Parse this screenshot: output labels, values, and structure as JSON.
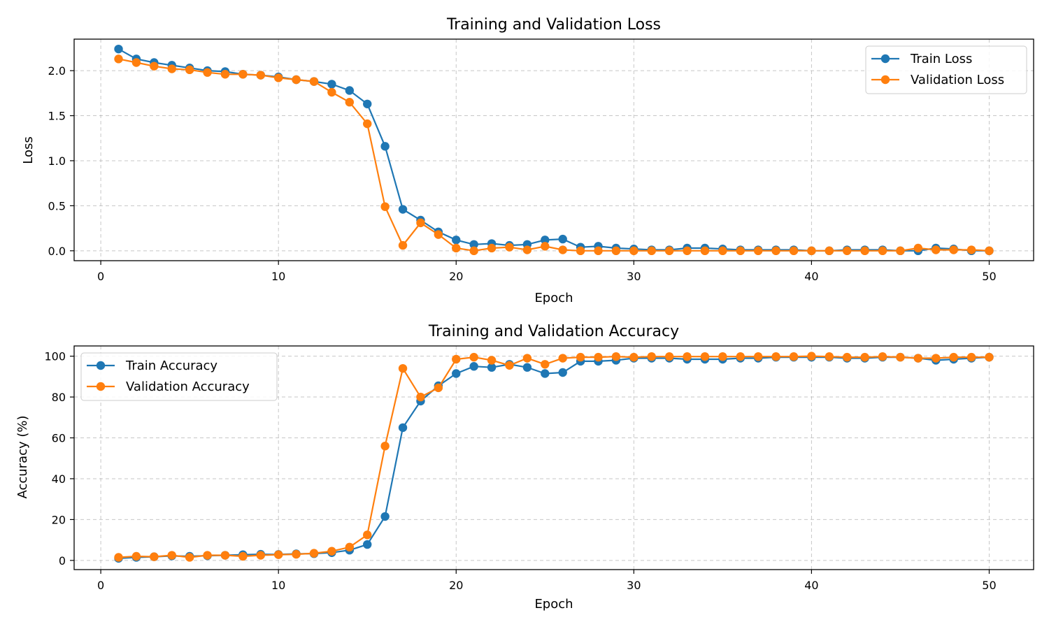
{
  "colors": {
    "train": "#1f77b4",
    "validation": "#ff7f0e",
    "grid": "#b0b0b0",
    "axes": "#000000"
  },
  "chart_data": [
    {
      "type": "line",
      "title": "Training and Validation Loss",
      "xlabel": "Epoch",
      "ylabel": "Loss",
      "xlim": [
        -1.5,
        52.5
      ],
      "ylim": [
        -0.11,
        2.35
      ],
      "xticks": [
        0,
        10,
        20,
        30,
        40,
        50
      ],
      "xtick_labels": [
        "0",
        "10",
        "20",
        "30",
        "40",
        "50"
      ],
      "yticks": [
        0.0,
        0.5,
        1.0,
        1.5,
        2.0
      ],
      "ytick_labels": [
        "0.0",
        "0.5",
        "1.0",
        "1.5",
        "2.0"
      ],
      "grid": true,
      "legend_position": "top-right",
      "x": [
        1,
        2,
        3,
        4,
        5,
        6,
        7,
        8,
        9,
        10,
        11,
        12,
        13,
        14,
        15,
        16,
        17,
        18,
        19,
        20,
        21,
        22,
        23,
        24,
        25,
        26,
        27,
        28,
        29,
        30,
        31,
        32,
        33,
        34,
        35,
        36,
        37,
        38,
        39,
        40,
        41,
        42,
        43,
        44,
        45,
        46,
        47,
        48,
        49,
        50
      ],
      "series": [
        {
          "name": "Train Loss",
          "color": "#1f77b4",
          "values": [
            2.24,
            2.13,
            2.09,
            2.06,
            2.03,
            2.0,
            1.99,
            1.96,
            1.95,
            1.93,
            1.9,
            1.88,
            1.85,
            1.78,
            1.63,
            1.16,
            0.46,
            0.34,
            0.21,
            0.12,
            0.07,
            0.08,
            0.06,
            0.07,
            0.12,
            0.13,
            0.04,
            0.05,
            0.03,
            0.02,
            0.01,
            0.01,
            0.03,
            0.03,
            0.02,
            0.01,
            0.01,
            0.01,
            0.01,
            0.0,
            0.0,
            0.01,
            0.01,
            0.01,
            0.0,
            0.0,
            0.03,
            0.02,
            0.0,
            0.0
          ]
        },
        {
          "name": "Validation Loss",
          "color": "#ff7f0e",
          "values": [
            2.13,
            2.09,
            2.05,
            2.02,
            2.01,
            1.98,
            1.96,
            1.96,
            1.95,
            1.92,
            1.9,
            1.88,
            1.76,
            1.65,
            1.41,
            0.49,
            0.06,
            0.31,
            0.18,
            0.03,
            0.0,
            0.03,
            0.04,
            0.01,
            0.05,
            0.01,
            0.0,
            0.0,
            0.0,
            0.0,
            0.0,
            0.0,
            0.0,
            0.0,
            0.0,
            0.0,
            0.0,
            0.0,
            0.0,
            0.0,
            0.0,
            0.0,
            0.0,
            0.0,
            0.0,
            0.03,
            0.01,
            0.01,
            0.01,
            0.0
          ]
        }
      ]
    },
    {
      "type": "line",
      "title": "Training and Validation Accuracy",
      "xlabel": "Epoch",
      "ylabel": "Accuracy (%)",
      "xlim": [
        -1.5,
        52.5
      ],
      "ylim": [
        -4.5,
        105
      ],
      "xticks": [
        0,
        10,
        20,
        30,
        40,
        50
      ],
      "xtick_labels": [
        "0",
        "10",
        "20",
        "30",
        "40",
        "50"
      ],
      "yticks": [
        0,
        20,
        40,
        60,
        80,
        100
      ],
      "ytick_labels": [
        "0",
        "20",
        "40",
        "60",
        "80",
        "100"
      ],
      "grid": true,
      "legend_position": "top-left",
      "x": [
        1,
        2,
        3,
        4,
        5,
        6,
        7,
        8,
        9,
        10,
        11,
        12,
        13,
        14,
        15,
        16,
        17,
        18,
        19,
        20,
        21,
        22,
        23,
        24,
        25,
        26,
        27,
        28,
        29,
        30,
        31,
        32,
        33,
        34,
        35,
        36,
        37,
        38,
        39,
        40,
        41,
        42,
        43,
        44,
        45,
        46,
        47,
        48,
        49,
        50
      ],
      "series": [
        {
          "name": "Train Accuracy",
          "color": "#1f77b4",
          "values": [
            1.0,
            1.5,
            1.8,
            2.2,
            2.0,
            2.3,
            2.5,
            2.8,
            3.0,
            2.9,
            3.2,
            3.3,
            3.8,
            5.0,
            7.8,
            21.5,
            65.0,
            78.0,
            85.5,
            91.5,
            95.0,
            94.5,
            96.0,
            94.5,
            91.5,
            92.0,
            97.5,
            97.5,
            98.0,
            99.0,
            99.0,
            99.0,
            98.5,
            98.5,
            98.5,
            99.0,
            99.0,
            99.5,
            99.5,
            99.5,
            99.5,
            99.0,
            99.0,
            99.5,
            99.5,
            99.0,
            98.0,
            98.5,
            99.0,
            99.5
          ]
        },
        {
          "name": "Validation Accuracy",
          "color": "#ff7f0e",
          "values": [
            1.5,
            2.0,
            1.8,
            2.5,
            1.5,
            2.5,
            2.5,
            2.0,
            2.5,
            2.8,
            3.0,
            3.5,
            4.5,
            6.5,
            12.5,
            56.0,
            94.0,
            80.0,
            84.5,
            98.5,
            99.5,
            98.0,
            95.5,
            99.0,
            96.0,
            99.0,
            99.5,
            99.5,
            99.8,
            99.5,
            99.8,
            99.8,
            99.8,
            99.8,
            99.8,
            99.8,
            99.8,
            99.8,
            99.8,
            100.0,
            99.8,
            99.5,
            99.5,
            99.8,
            99.5,
            99.0,
            99.0,
            99.5,
            99.5,
            99.5
          ]
        }
      ]
    }
  ]
}
